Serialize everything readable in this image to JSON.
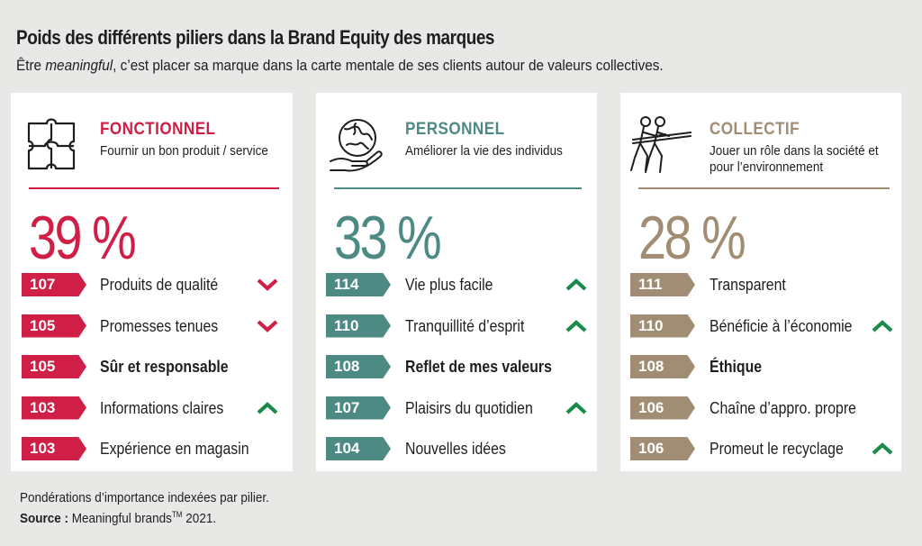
{
  "title": "Poids des différents piliers dans la Brand Equity des marques",
  "subtitle_before": "Être ",
  "subtitle_em": "meaningful",
  "subtitle_after": ", c’est placer sa marque dans la carte mentale de ses clients autour de valeurs collectives.",
  "colors": {
    "fonctionnel": "#cf1f47",
    "personnel": "#4e8a84",
    "collectif": "#a08d74",
    "arrow_up": "#1a8a4a",
    "arrow_down": "#cf1f47"
  },
  "chart_data": [
    {
      "type": "table",
      "pillar": "FONCTIONNEL",
      "description": "Fournir un bon produit / service",
      "icon": "puzzle-icon",
      "share_label": "39 %",
      "share": 39,
      "rows": [
        {
          "index": 107,
          "label": "Produits de qualité",
          "trend": "down",
          "bold": false
        },
        {
          "index": 105,
          "label": "Promesses tenues",
          "trend": "down",
          "bold": false
        },
        {
          "index": 105,
          "label": "Sûr et responsable",
          "trend": "none",
          "bold": true
        },
        {
          "index": 103,
          "label": "Informations claires",
          "trend": "up",
          "bold": false
        },
        {
          "index": 103,
          "label": "Expérience en magasin",
          "trend": "none",
          "bold": false
        }
      ]
    },
    {
      "type": "table",
      "pillar": "PERSONNEL",
      "description": "Améliorer la vie des individus",
      "icon": "hand-globe-puzzle-icon",
      "share_label": "33 %",
      "share": 33,
      "rows": [
        {
          "index": 114,
          "label": "Vie plus facile",
          "trend": "up",
          "bold": false
        },
        {
          "index": 110,
          "label": "Tranquillité d’esprit",
          "trend": "up",
          "bold": false
        },
        {
          "index": 108,
          "label": "Reflet de mes valeurs",
          "trend": "none",
          "bold": true
        },
        {
          "index": 107,
          "label": "Plaisirs du quotidien",
          "trend": "up",
          "bold": false
        },
        {
          "index": 104,
          "label": "Nouvelles idées",
          "trend": "none",
          "bold": false
        }
      ]
    },
    {
      "type": "table",
      "pillar": "COLLECTIF",
      "description": "Jouer un rôle dans la société et pour l’environnement",
      "icon": "tug-of-war-icon",
      "share_label": "28 %",
      "share": 28,
      "rows": [
        {
          "index": 111,
          "label": "Transparent",
          "trend": "none",
          "bold": false
        },
        {
          "index": 110,
          "label": "Bénéficie à l’économie",
          "trend": "up",
          "bold": false
        },
        {
          "index": 108,
          "label": "Éthique",
          "trend": "none",
          "bold": true
        },
        {
          "index": 106,
          "label": "Chaîne d’appro. propre",
          "trend": "none",
          "bold": false
        },
        {
          "index": 106,
          "label": "Promeut le recyclage",
          "trend": "up",
          "bold": false
        }
      ]
    }
  ],
  "footnote": "Pondérations d’importance indexées par pilier.",
  "source_label": "Source :",
  "source_text": " Meaningful brands",
  "source_sup": "TM",
  "source_year": " 2021."
}
